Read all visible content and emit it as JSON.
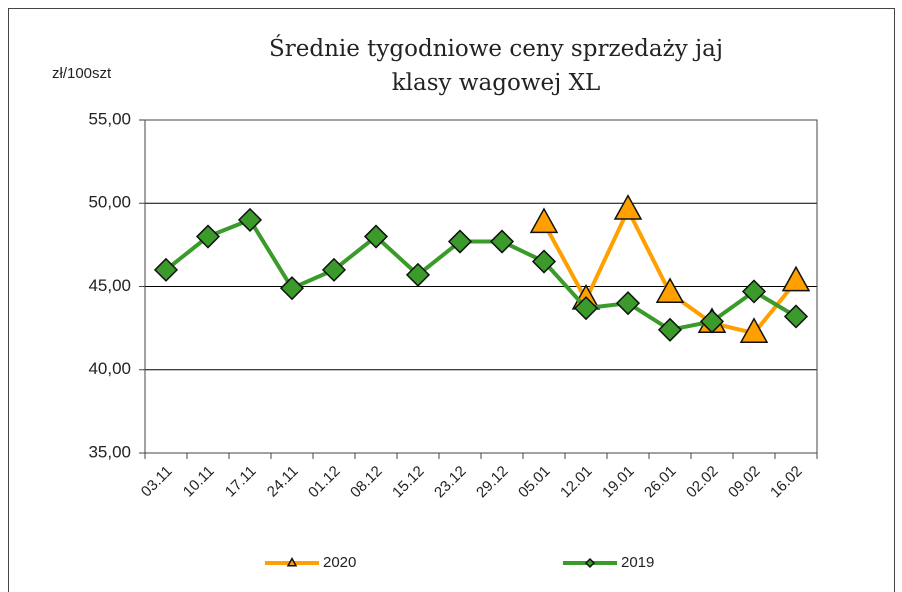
{
  "chart_data": {
    "type": "line",
    "title": [
      "Średnie tygodniowe ceny sprzedaży jaj",
      "klasy wagowej XL"
    ],
    "y_label": "zł/100szt",
    "categories": [
      "03.11",
      "10.11",
      "17.11",
      "24.11",
      "01.12",
      "08.12",
      "15.12",
      "23.12",
      "29.12",
      "05.01",
      "12.01",
      "19.01",
      "26.01",
      "02.02",
      "09.02",
      "16.02"
    ],
    "series": [
      {
        "name": "2020",
        "color": "#ffa000",
        "marker": "triangle",
        "values": [
          null,
          null,
          null,
          null,
          null,
          null,
          null,
          null,
          null,
          48.8,
          44.2,
          49.6,
          44.6,
          42.8,
          42.2,
          45.3
        ]
      },
      {
        "name": "2019",
        "color": "#3a9a2a",
        "marker": "diamond",
        "values": [
          46.0,
          48.0,
          49.0,
          44.9,
          46.0,
          48.0,
          45.7,
          47.7,
          47.7,
          46.5,
          43.7,
          44.0,
          42.4,
          42.9,
          44.7,
          43.2
        ]
      }
    ],
    "ylim": [
      35,
      55
    ],
    "yticks": [
      {
        "value": 35,
        "label": "35,00"
      },
      {
        "value": 40,
        "label": "40,00"
      },
      {
        "value": 45,
        "label": "45,00"
      },
      {
        "value": 50,
        "label": "50,00"
      },
      {
        "value": 55,
        "label": "55,00"
      }
    ],
    "grid": true,
    "legend": "bottom"
  }
}
